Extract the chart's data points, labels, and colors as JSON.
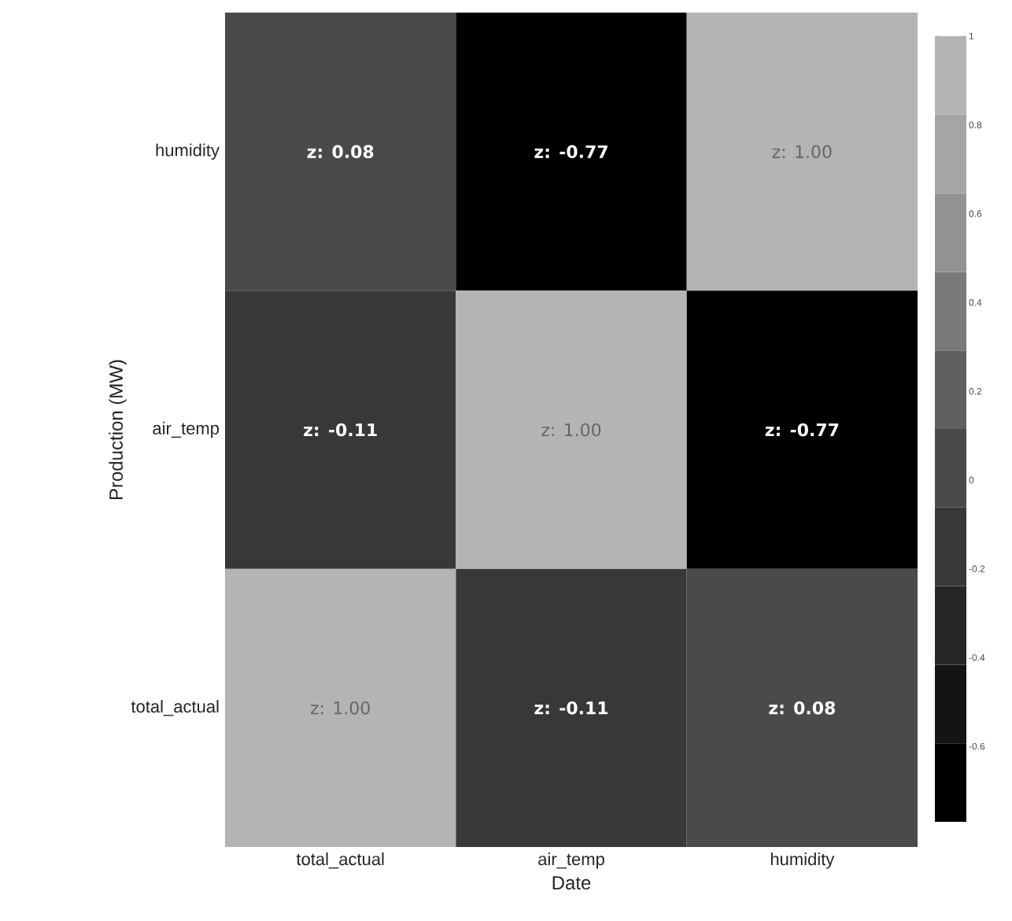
{
  "chart_data": {
    "type": "heatmap",
    "xlabel": "Date",
    "ylabel": "Production (MW)",
    "categories": [
      "total_actual",
      "air_temp",
      "humidity"
    ],
    "y_categories": [
      "humidity",
      "air_temp",
      "total_actual"
    ],
    "cells": [
      [
        0.08,
        -0.77,
        1.0
      ],
      [
        -0.11,
        1.0,
        -0.77
      ],
      [
        1.0,
        -0.11,
        0.08
      ]
    ],
    "cell_labels": [
      [
        "z: 0.08",
        "z: -0.77",
        "z: 1.00"
      ],
      [
        "z: -0.11",
        "z: 1.00",
        "z: -0.77"
      ],
      [
        "z: 1.00",
        "z: -0.11",
        "z: 0.08"
      ]
    ],
    "clim": [
      -0.77,
      1
    ],
    "cticks": [
      1,
      0.8,
      0.6,
      0.4,
      0.2,
      0,
      -0.2,
      -0.4,
      -0.6
    ],
    "colors": [
      "#000000",
      "#141414",
      "#262626",
      "#383838",
      "#4a4a4a",
      "#606060",
      "#7a7a7a",
      "#929292",
      "#a5a5a5",
      "#b4b4b4"
    ]
  }
}
